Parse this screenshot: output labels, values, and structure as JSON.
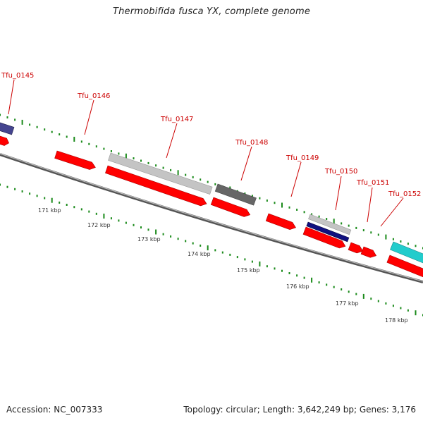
{
  "title": "Thermobifida fusca YX, complete genome",
  "accession": "Accession: NC_007333",
  "summary": "Topology: circular; Length: 3,642,249 bp; Genes: 3,176",
  "colors": {
    "forward_cds": "#ff0000",
    "backbone": "#888888",
    "tick": "#1a8a1a",
    "label": "#cc0000",
    "feature_grey": "#c4c4c4",
    "feature_dark_grey": "#666666",
    "feature_navy": "#101080",
    "feature_purple": "#44448f",
    "feature_cyan": "#22cccc"
  },
  "gene_labels": [
    "Tfu_0145",
    "Tfu_0146",
    "Tfu_0147",
    "Tfu_0148",
    "Tfu_0149",
    "Tfu_0150",
    "Tfu_0151",
    "Tfu_0152"
  ],
  "kbp_labels": [
    "171 kbp",
    "172 kbp",
    "173 kbp",
    "174 kbp",
    "175 kbp",
    "176 kbp",
    "177 kbp",
    "178 kbp"
  ]
}
